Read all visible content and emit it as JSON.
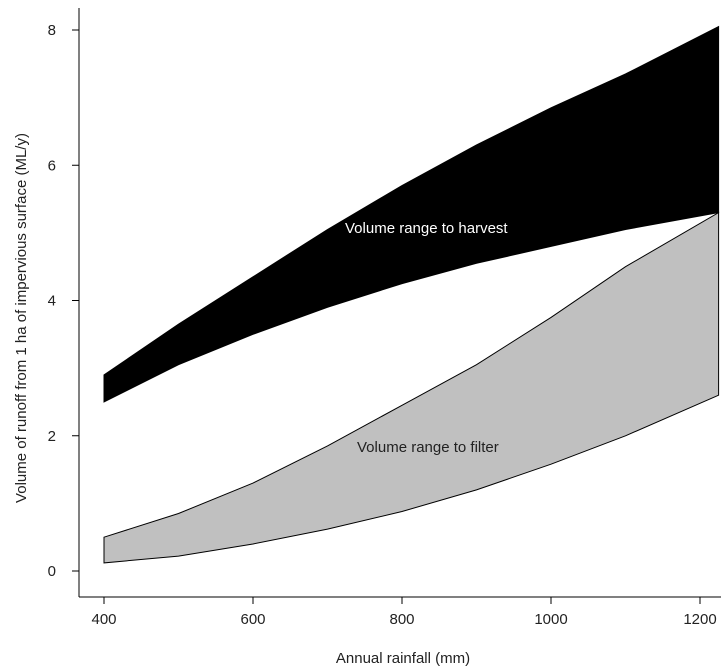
{
  "chart_data": {
    "type": "area",
    "title": "",
    "xlabel": "Annual rainfall (mm)",
    "ylabel": "Volume of runoff from 1 ha of impervious surface (ML/y)",
    "xlim": [
      380,
      1225
    ],
    "ylim": [
      -0.3,
      8.4
    ],
    "x_ticks": [
      400,
      600,
      800,
      1000,
      1200
    ],
    "y_ticks": [
      0,
      2,
      4,
      6,
      8
    ],
    "x_tick_labels": [
      "400",
      "600",
      "800",
      "1000",
      "1200"
    ],
    "y_tick_labels": [
      "0",
      "2",
      "4",
      "6",
      "8"
    ],
    "grid": false,
    "legend": "none",
    "series": [
      {
        "label": "Volume range to harvest",
        "color": "#000000",
        "x": [
          400,
          500,
          600,
          700,
          800,
          900,
          1000,
          1100,
          1225
        ],
        "upper": [
          2.9,
          3.65,
          4.35,
          5.05,
          5.7,
          6.3,
          6.85,
          7.35,
          8.05
        ],
        "lower": [
          2.5,
          3.05,
          3.5,
          3.9,
          4.25,
          4.55,
          4.8,
          5.05,
          5.3
        ]
      },
      {
        "label": "Volume range to filter",
        "color": "#c0c0c0",
        "x": [
          400,
          500,
          600,
          700,
          800,
          900,
          1000,
          1100,
          1225
        ],
        "upper": [
          0.5,
          0.85,
          1.3,
          1.85,
          2.45,
          3.05,
          3.75,
          4.5,
          5.3
        ],
        "lower": [
          0.12,
          0.22,
          0.4,
          0.62,
          0.88,
          1.2,
          1.58,
          2.0,
          2.6
        ]
      }
    ]
  }
}
